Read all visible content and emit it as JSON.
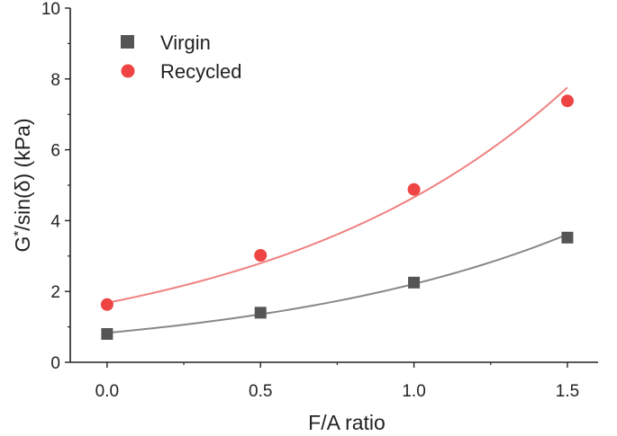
{
  "chart_data": {
    "type": "scatter",
    "title": "",
    "xlabel": "F/A ratio",
    "ylabel": {
      "base": "G",
      "superscript": "*",
      "rest": "/sin(δ) (kPa)"
    },
    "xlim": [
      -0.12,
      1.6
    ],
    "ylim": [
      0,
      10
    ],
    "xticks": [
      0.0,
      0.5,
      1.0,
      1.5
    ],
    "xtick_labels": [
      "0.0",
      "0.5",
      "1.0",
      "1.5"
    ],
    "yticks": [
      0,
      2,
      4,
      6,
      8,
      10
    ],
    "ytick_labels": [
      "0",
      "2",
      "4",
      "6",
      "8",
      "10"
    ],
    "grid": false,
    "legend_position": "top-left",
    "series": [
      {
        "name": "Virgin",
        "marker": "square",
        "color": "#555555",
        "fit_color": "#888888",
        "x": [
          0.0,
          0.5,
          1.0,
          1.5
        ],
        "y": [
          0.8,
          1.4,
          2.25,
          3.52
        ],
        "fit": {
          "model": "exponential",
          "a": 0.83,
          "b": 0.98
        }
      },
      {
        "name": "Recycled",
        "marker": "circle",
        "color": "#ee4444",
        "fit_color": "#f08080",
        "x": [
          0.0,
          0.5,
          1.0,
          1.5
        ],
        "y": [
          1.63,
          3.02,
          4.88,
          7.38
        ],
        "fit": {
          "model": "exponential",
          "a": 1.68,
          "b": 1.02
        }
      }
    ]
  }
}
